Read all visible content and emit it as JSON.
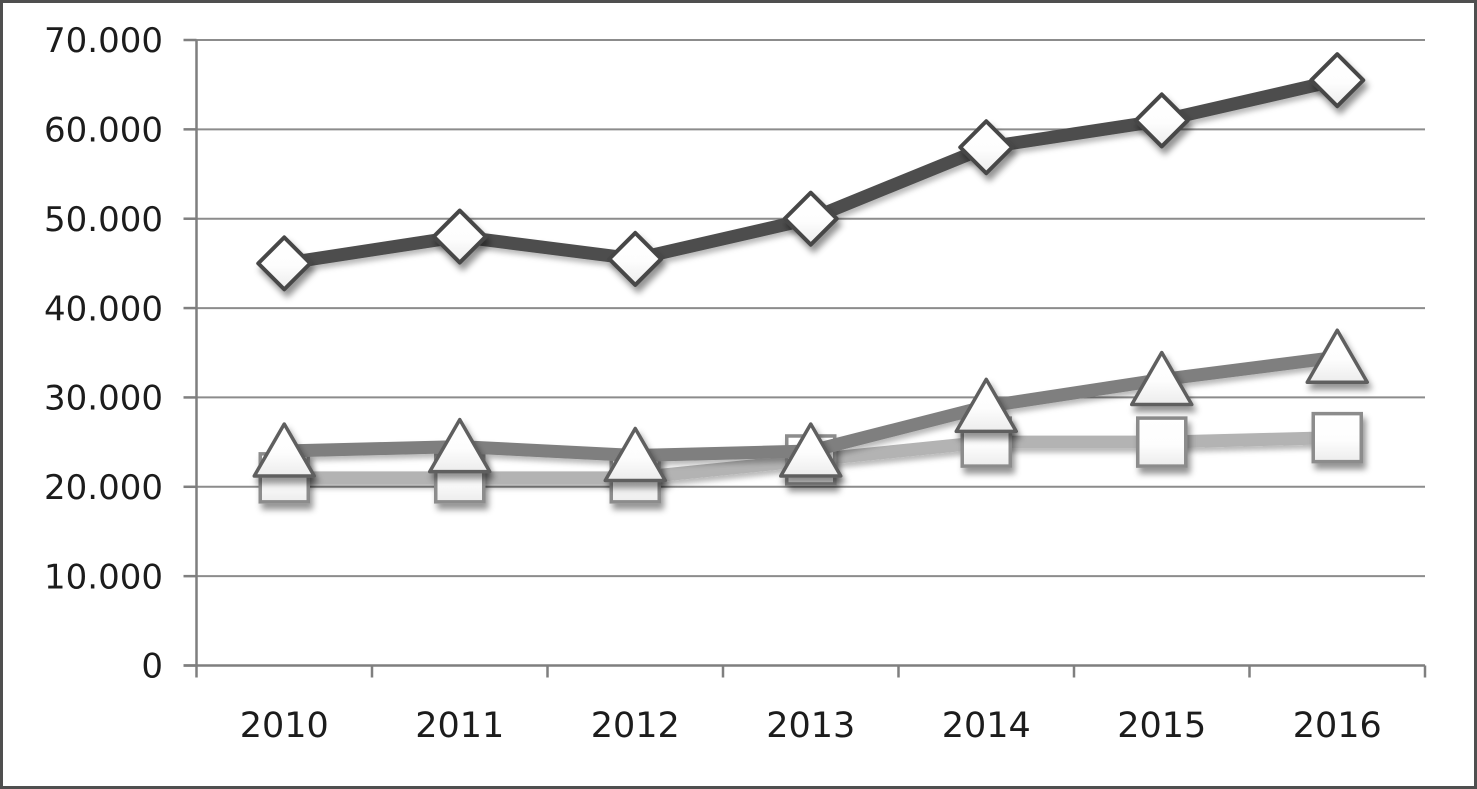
{
  "chart_data": {
    "type": "line",
    "title": "",
    "xlabel": "",
    "ylabel": "",
    "legend": false,
    "grid": true,
    "categories": [
      "2010",
      "2011",
      "2012",
      "2013",
      "2014",
      "2015",
      "2016"
    ],
    "series": [
      {
        "name": "diamond-series",
        "marker": "diamond",
        "line_color": "#4d4d4d",
        "marker_stroke": "#474747",
        "marker_fill": "#ffffff",
        "values": [
          45000,
          48000,
          45500,
          50000,
          58000,
          61000,
          65500
        ]
      },
      {
        "name": "triangle-series",
        "marker": "triangle",
        "line_color": "#7f7f7f",
        "marker_stroke": "#5e5e5e",
        "marker_fill": "#ffffff",
        "values": [
          24000,
          24500,
          23500,
          24000,
          29000,
          32000,
          34500
        ]
      },
      {
        "name": "square-series",
        "marker": "square",
        "line_color": "#b3b3b3",
        "marker_stroke": "#8c8c8c",
        "marker_fill": "#ffffff",
        "values": [
          21000,
          21000,
          21000,
          23000,
          25000,
          25000,
          25500
        ]
      }
    ],
    "y_axis": {
      "min": 0,
      "max": 70000,
      "step": 10000,
      "tick_labels": [
        "0",
        "10.000",
        "20.000",
        "30.000",
        "40.000",
        "50.000",
        "60.000",
        "70.000"
      ]
    },
    "x_axis": {
      "tick_labels": [
        "2010",
        "2011",
        "2012",
        "2013",
        "2014",
        "2015",
        "2016"
      ]
    },
    "colors": {
      "gridline": "#8c8c8c",
      "axis": "#7f7f7f",
      "text": "#1c1c1c",
      "frame_border": "#4f4f4f",
      "background": "#ffffff"
    }
  }
}
